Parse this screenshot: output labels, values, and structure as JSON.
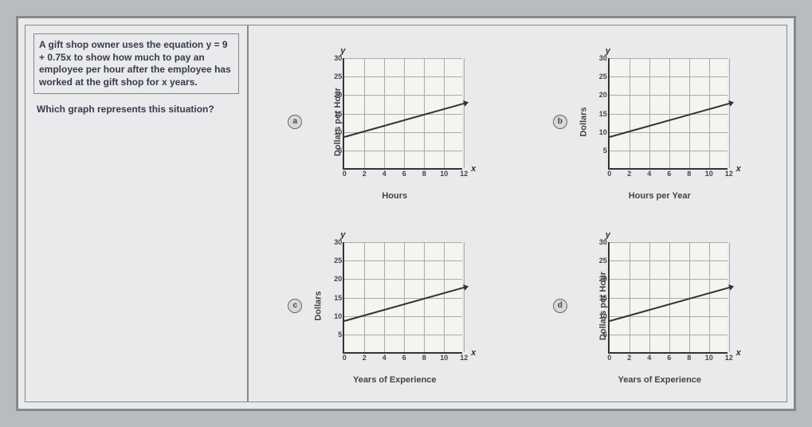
{
  "question": {
    "prompt_box": "A gift shop owner uses the equation y = 9 + 0.75x to show how much to pay an employee per hour after the employee has worked at the gift shop for x years.",
    "prompt_text": "Which graph represents this situation?"
  },
  "charts": [
    {
      "option": "a",
      "y_label": "Dollars per Hour",
      "x_label": "Hours",
      "y_symbol": "y",
      "x_symbol": "x",
      "y_ticks": [
        5,
        10,
        15,
        20,
        25,
        30
      ],
      "x_ticks": [
        0,
        2,
        4,
        6,
        8,
        10,
        12
      ],
      "line": {
        "x1": 0,
        "y1": 9,
        "x2": 12,
        "y2": 18
      },
      "style": {
        "y_max": 30,
        "x_max": 12,
        "grid_color": "#aaaaaa",
        "line_color": "#333333",
        "bg": "#f4f4f0"
      }
    },
    {
      "option": "b",
      "y_label": "Dollars",
      "x_label": "Hours per Year",
      "y_symbol": "y",
      "x_symbol": "x",
      "y_ticks": [
        5,
        10,
        15,
        20,
        25,
        30
      ],
      "x_ticks": [
        0,
        2,
        4,
        6,
        8,
        10,
        12
      ],
      "line": {
        "x1": 0,
        "y1": 9,
        "x2": 12,
        "y2": 18
      },
      "style": {
        "y_max": 30,
        "x_max": 12,
        "grid_color": "#aaaaaa",
        "line_color": "#333333",
        "bg": "#f4f4f0"
      }
    },
    {
      "option": "c",
      "y_label": "Dollars",
      "x_label": "Years of Experience",
      "y_symbol": "y",
      "x_symbol": "x",
      "y_ticks": [
        5,
        10,
        15,
        20,
        25,
        30
      ],
      "x_ticks": [
        0,
        2,
        4,
        6,
        8,
        10,
        12
      ],
      "line": {
        "x1": 0,
        "y1": 9,
        "x2": 12,
        "y2": 18
      },
      "style": {
        "y_max": 30,
        "x_max": 12,
        "grid_color": "#aaaaaa",
        "line_color": "#333333",
        "bg": "#f4f4f0"
      }
    },
    {
      "option": "d",
      "y_label": "Dollars per Hour",
      "x_label": "Years of Experience",
      "y_symbol": "y",
      "x_symbol": "x",
      "y_ticks": [
        5,
        10,
        15,
        20,
        25,
        30
      ],
      "x_ticks": [
        0,
        2,
        4,
        6,
        8,
        10,
        12
      ],
      "line": {
        "x1": 0,
        "y1": 9,
        "x2": 12,
        "y2": 18
      },
      "style": {
        "y_max": 30,
        "x_max": 12,
        "grid_color": "#aaaaaa",
        "line_color": "#333333",
        "bg": "#f4f4f0"
      }
    }
  ]
}
